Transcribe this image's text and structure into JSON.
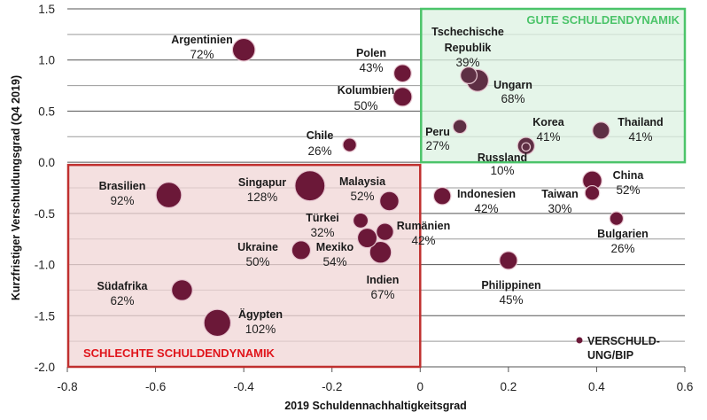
{
  "chart_data": {
    "type": "scatter",
    "subtype": "bubble",
    "xlabel": "2019 Schuldennachhaltigkeitsgrad",
    "ylabel": "Kurzfristiger Verschuldungsgrad (Q4 2019)",
    "xlim": [
      -0.8,
      0.6
    ],
    "ylim": [
      -2.0,
      1.5
    ],
    "xticks": [
      "-0.8",
      "-0.6",
      "-0.4",
      "-0.2",
      "0",
      "0.2",
      "0.4",
      "0.6"
    ],
    "yticks": [
      "1.5",
      "1.0",
      "0.5",
      "0.0",
      "-0.5",
      "-1.0",
      "-1.5",
      "-2.0"
    ],
    "grid": true,
    "size_legend": {
      "label_line1": "VERSCHULD-",
      "label_line2": "UNG/BIP",
      "placement": "bottom-right"
    },
    "regions": [
      {
        "label": "GUTE SCHULDENDYNAMIK",
        "x": [
          0.0,
          0.6
        ],
        "y": [
          0.0,
          1.5
        ],
        "color": "#4cc46a",
        "fill": "#dcf1e1"
      },
      {
        "label": "SCHLECHTE SCHULDENDYNAMIK",
        "x": [
          -0.8,
          0.0
        ],
        "y": [
          -2.0,
          0.0
        ],
        "color": "#c0302f",
        "fill": "#f0d5d6"
      }
    ],
    "bubble_color": "#6b1838",
    "points": [
      {
        "name": "Argentinien",
        "x": -0.4,
        "y": 1.1,
        "debt": "72%",
        "size": 72
      },
      {
        "name": "Polen",
        "x": -0.04,
        "y": 0.87,
        "debt": "43%",
        "size": 43
      },
      {
        "name": "Kolumbien",
        "x": -0.04,
        "y": 0.64,
        "debt": "50%",
        "size": 50
      },
      {
        "name": "Chile",
        "x": -0.16,
        "y": 0.17,
        "debt": "26%",
        "size": 26
      },
      {
        "name": "Tschechische",
        "name2": "Republik",
        "x": 0.11,
        "y": 0.85,
        "debt": "39%",
        "size": 39
      },
      {
        "name": "Ungarn",
        "x": 0.13,
        "y": 0.8,
        "debt": "68%",
        "size": 68
      },
      {
        "name": "Peru",
        "x": 0.09,
        "y": 0.35,
        "debt": "27%",
        "size": 27
      },
      {
        "name": "Korea",
        "x": 0.24,
        "y": 0.16,
        "debt": "41%",
        "size": 41
      },
      {
        "name": "Russland",
        "x": 0.24,
        "y": 0.15,
        "debt": "10%",
        "size": 10
      },
      {
        "name": "Thailand",
        "x": 0.41,
        "y": 0.31,
        "debt": "41%",
        "size": 41
      },
      {
        "name": "China",
        "x": 0.39,
        "y": -0.18,
        "debt": "52%",
        "size": 52
      },
      {
        "name": "Taiwan",
        "x": 0.39,
        "y": -0.3,
        "debt": "30%",
        "size": 30
      },
      {
        "name": "Indonesien",
        "x": 0.05,
        "y": -0.33,
        "debt": "42%",
        "size": 42
      },
      {
        "name": "Bulgarien",
        "x": 0.445,
        "y": -0.55,
        "debt": "26%",
        "size": 26
      },
      {
        "name": "Philippinen",
        "x": 0.2,
        "y": -0.96,
        "debt": "45%",
        "size": 45
      },
      {
        "name": "Brasilien",
        "x": -0.57,
        "y": -0.32,
        "debt": "92%",
        "size": 92
      },
      {
        "name": "Singapur",
        "x": -0.25,
        "y": -0.23,
        "debt": "128%",
        "size": 128
      },
      {
        "name": "Malaysia",
        "x": -0.07,
        "y": -0.38,
        "debt": "52%",
        "size": 52
      },
      {
        "name": "Türkei",
        "x": -0.135,
        "y": -0.57,
        "debt": "32%",
        "size": 32
      },
      {
        "name": "Rumänien",
        "x": -0.08,
        "y": -0.68,
        "debt": "42%",
        "size": 42
      },
      {
        "name": "Mexiko",
        "x": -0.12,
        "y": -0.74,
        "debt": "54%",
        "size": 54
      },
      {
        "name": "Indien",
        "x": -0.09,
        "y": -0.88,
        "debt": "67%",
        "size": 67
      },
      {
        "name": "Ukraine",
        "x": -0.27,
        "y": -0.86,
        "debt": "50%",
        "size": 50
      },
      {
        "name": "Südafrika",
        "x": -0.54,
        "y": -1.25,
        "debt": "62%",
        "size": 62
      },
      {
        "name": "Ägypten",
        "x": -0.46,
        "y": -1.57,
        "debt": "102%",
        "size": 102
      }
    ]
  }
}
